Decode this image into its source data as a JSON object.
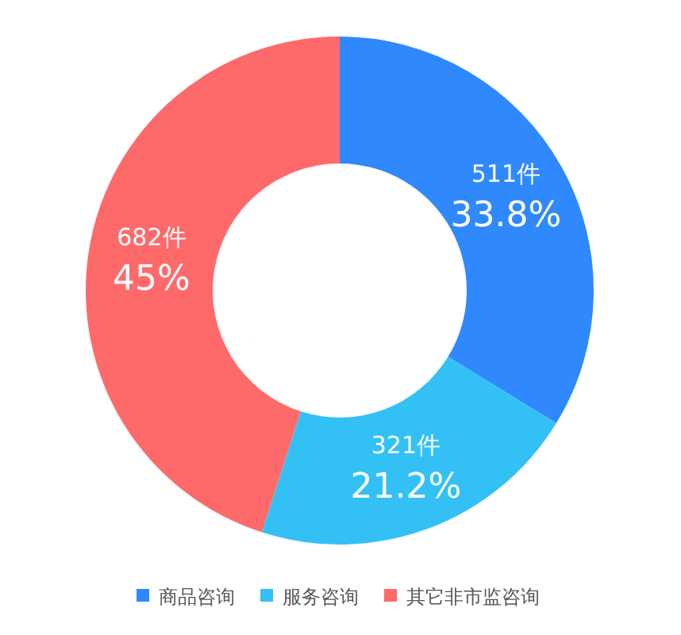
{
  "chart_data": {
    "type": "donut",
    "categories": [
      "商品咨询",
      "服务咨询",
      "其它非市监咨询"
    ],
    "values": [
      511,
      321,
      682
    ],
    "colors": [
      "#2f89fc",
      "#33c1f5",
      "#fe6a6a"
    ],
    "value_labels": [
      "511件\n33.8%",
      "321件\n21.2%",
      "682件\n45%"
    ],
    "legend": "bottom"
  }
}
